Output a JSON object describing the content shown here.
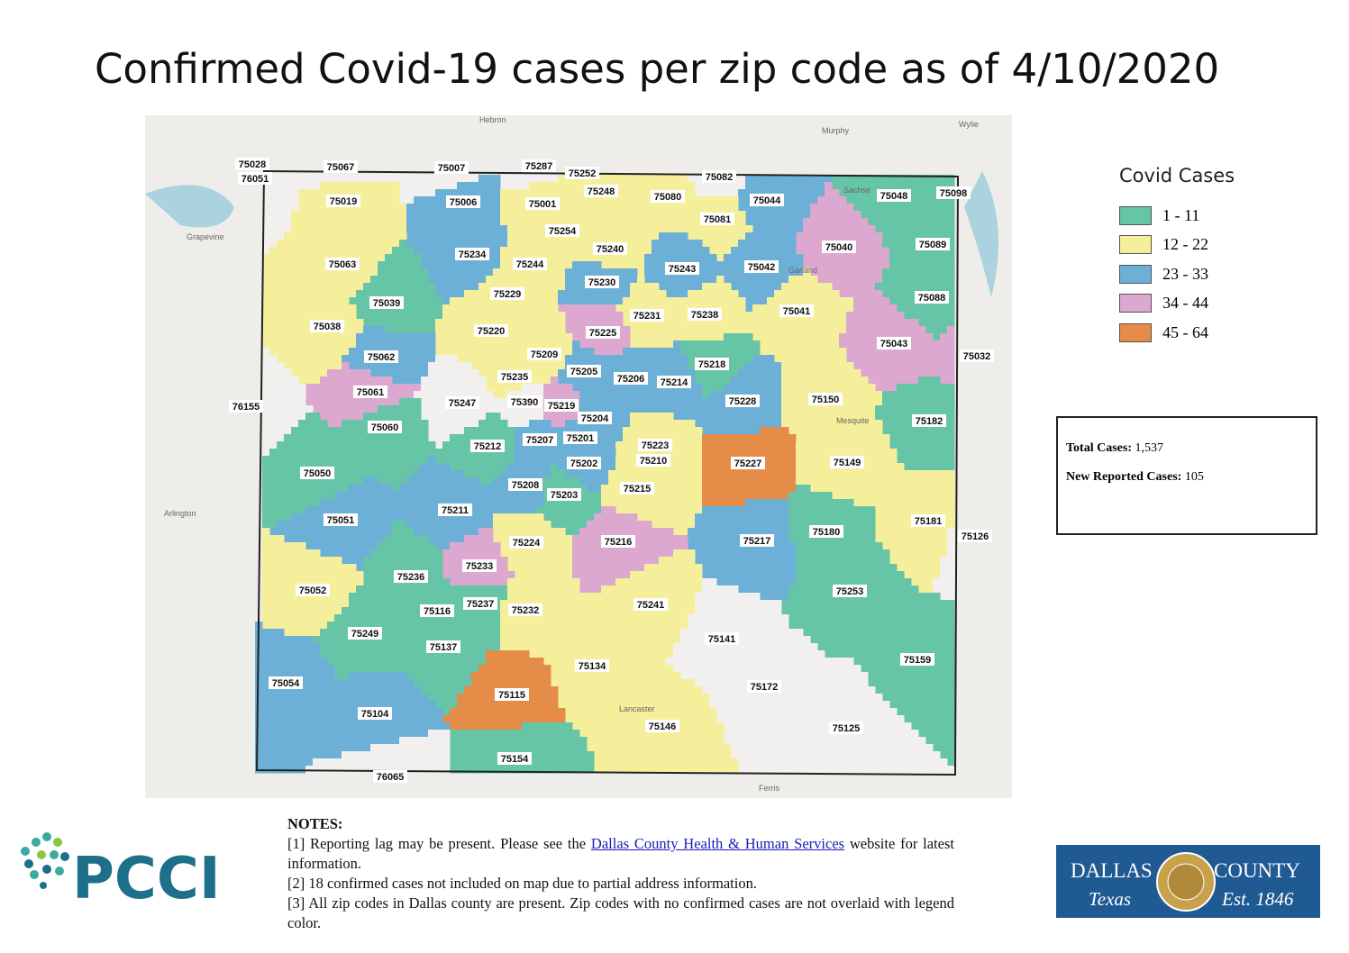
{
  "title": "Confirmed Covid-19 cases per zip code as of 4/10/2020",
  "legend": {
    "title": "Covid Cases",
    "items": [
      {
        "label": "1 - 11",
        "color": "#66c5a6"
      },
      {
        "label": "12 - 22",
        "color": "#f5ef9c"
      },
      {
        "label": "23 - 33",
        "color": "#6cb0d8"
      },
      {
        "label": "34 - 44",
        "color": "#dca8d0"
      },
      {
        "label": "45 - 64",
        "color": "#e48c48"
      }
    ]
  },
  "stats": {
    "total_label": "Total Cases:",
    "total_value": "1,537",
    "new_label": "New Reported Cases:",
    "new_value": "105"
  },
  "places": [
    "Hebron",
    "Murphy",
    "Wylie",
    "Grapevine",
    "Arlington",
    "Ferris",
    "Sachse",
    "Garland",
    "Mesquite",
    "Lancaster"
  ],
  "zips": [
    {
      "zip": "75028",
      "class": null
    },
    {
      "zip": "76051",
      "class": null
    },
    {
      "zip": "75067",
      "class": null
    },
    {
      "zip": "75007",
      "class": null
    },
    {
      "zip": "75287",
      "class": null
    },
    {
      "zip": "75252",
      "class": 1
    },
    {
      "zip": "75082",
      "class": null
    },
    {
      "zip": "75019",
      "class": 1
    },
    {
      "zip": "75006",
      "class": 2
    },
    {
      "zip": "75001",
      "class": 1
    },
    {
      "zip": "75248",
      "class": 1
    },
    {
      "zip": "75080",
      "class": 1
    },
    {
      "zip": "75044",
      "class": 2
    },
    {
      "zip": "75048",
      "class": 0
    },
    {
      "zip": "75098",
      "class": 0
    },
    {
      "zip": "75081",
      "class": 1
    },
    {
      "zip": "75254",
      "class": 1
    },
    {
      "zip": "75040",
      "class": 3
    },
    {
      "zip": "75089",
      "class": 0
    },
    {
      "zip": "75240",
      "class": 1
    },
    {
      "zip": "75234",
      "class": 2
    },
    {
      "zip": "75063",
      "class": 1
    },
    {
      "zip": "75244",
      "class": 1
    },
    {
      "zip": "75243",
      "class": 2
    },
    {
      "zip": "75042",
      "class": 2
    },
    {
      "zip": "75230",
      "class": 2
    },
    {
      "zip": "75229",
      "class": 1
    },
    {
      "zip": "75088",
      "class": 0
    },
    {
      "zip": "75039",
      "class": 0
    },
    {
      "zip": "75231",
      "class": 1
    },
    {
      "zip": "75238",
      "class": 1
    },
    {
      "zip": "75041",
      "class": 1
    },
    {
      "zip": "75038",
      "class": 1
    },
    {
      "zip": "75220",
      "class": 1
    },
    {
      "zip": "75225",
      "class": 3
    },
    {
      "zip": "75043",
      "class": 3
    },
    {
      "zip": "75032",
      "class": 3
    },
    {
      "zip": "75062",
      "class": 2
    },
    {
      "zip": "75209",
      "class": 1
    },
    {
      "zip": "75218",
      "class": 0
    },
    {
      "zip": "75205",
      "class": 2
    },
    {
      "zip": "75235",
      "class": 1
    },
    {
      "zip": "75206",
      "class": 2
    },
    {
      "zip": "75214",
      "class": 2
    },
    {
      "zip": "75061",
      "class": 3
    },
    {
      "zip": "75390",
      "class": null
    },
    {
      "zip": "75247",
      "class": null
    },
    {
      "zip": "75219",
      "class": 3
    },
    {
      "zip": "75228",
      "class": 2
    },
    {
      "zip": "75150",
      "class": 1
    },
    {
      "zip": "76155",
      "class": null
    },
    {
      "zip": "75204",
      "class": 2
    },
    {
      "zip": "75182",
      "class": 0
    },
    {
      "zip": "75060",
      "class": 0
    },
    {
      "zip": "75212",
      "class": 0
    },
    {
      "zip": "75207",
      "class": 2
    },
    {
      "zip": "75201",
      "class": 2
    },
    {
      "zip": "75223",
      "class": 1
    },
    {
      "zip": "75210",
      "class": 1
    },
    {
      "zip": "75202",
      "class": 2
    },
    {
      "zip": "75227",
      "class": 4
    },
    {
      "zip": "75149",
      "class": 1
    },
    {
      "zip": "75050",
      "class": 0
    },
    {
      "zip": "75208",
      "class": 2
    },
    {
      "zip": "75203",
      "class": 0
    },
    {
      "zip": "75215",
      "class": 1
    },
    {
      "zip": "75211",
      "class": 2
    },
    {
      "zip": "75051",
      "class": 2
    },
    {
      "zip": "75181",
      "class": 1
    },
    {
      "zip": "75180",
      "class": 0
    },
    {
      "zip": "75126",
      "class": null
    },
    {
      "zip": "75217",
      "class": 2
    },
    {
      "zip": "75224",
      "class": 1
    },
    {
      "zip": "75216",
      "class": 3
    },
    {
      "zip": "75233",
      "class": 3
    },
    {
      "zip": "75236",
      "class": 0
    },
    {
      "zip": "75052",
      "class": 1
    },
    {
      "zip": "75253",
      "class": 0
    },
    {
      "zip": "75241",
      "class": 1
    },
    {
      "zip": "75237",
      "class": 0
    },
    {
      "zip": "75116",
      "class": 0
    },
    {
      "zip": "75232",
      "class": 1
    },
    {
      "zip": "75249",
      "class": 0
    },
    {
      "zip": "75141",
      "class": null
    },
    {
      "zip": "75137",
      "class": 0
    },
    {
      "zip": "75159",
      "class": 0
    },
    {
      "zip": "75134",
      "class": 1
    },
    {
      "zip": "75054",
      "class": 2
    },
    {
      "zip": "75172",
      "class": null
    },
    {
      "zip": "75115",
      "class": 4
    },
    {
      "zip": "75104",
      "class": 2
    },
    {
      "zip": "75146",
      "class": 1
    },
    {
      "zip": "75125",
      "class": null
    },
    {
      "zip": "75154",
      "class": 0
    },
    {
      "zip": "76065",
      "class": null
    }
  ],
  "notes": {
    "heading": "NOTES:",
    "note1_before": "[1] Reporting lag may be present. Please see the",
    "note1_link": "Dallas County Health & Human Services",
    "note1_after": "website for latest information.",
    "note2": "[2] 18 confirmed cases not included on map due to partial address information.",
    "note3": "[3] All zip codes in Dallas county are present. Zip codes with no confirmed cases are not overlaid with legend color."
  },
  "logos": {
    "pcci": "PCCI",
    "dallas": "DALLAS",
    "county": "COUNTY",
    "texas": "Texas",
    "est": "Est. 1846"
  }
}
